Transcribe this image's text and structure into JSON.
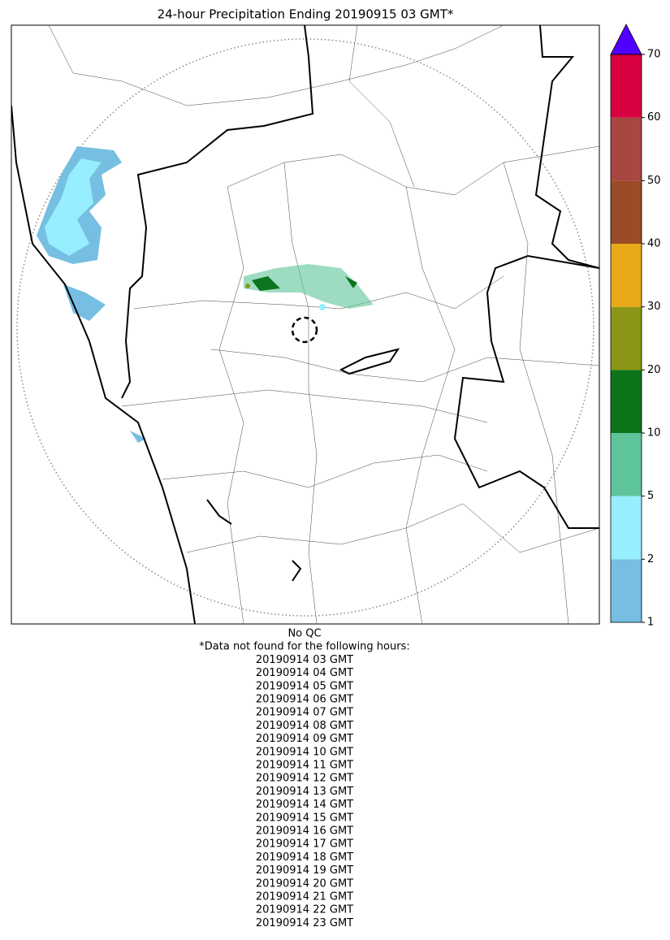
{
  "title": "24-hour Precipitation Ending 20190915 03 GMT*",
  "colorbar": {
    "ticks": [
      1,
      2,
      5,
      10,
      20,
      30,
      40,
      50,
      60,
      70
    ],
    "colors": [
      "#76bfe2",
      "#96eefe",
      "#5ec49a",
      "#0c741a",
      "#8b9616",
      "#e8aa18",
      "#9a4b28",
      "#a84640",
      "#d8003f"
    ],
    "extend_color": "#5000ff"
  },
  "notes": [
    "No QC",
    "*Data not found for the following hours:"
  ],
  "missing_hours": [
    "20190914 03 GMT",
    "20190914 04 GMT",
    "20190914 05 GMT",
    "20190914 06 GMT",
    "20190914 07 GMT",
    "20190914 08 GMT",
    "20190914 09 GMT",
    "20190914 10 GMT",
    "20190914 11 GMT",
    "20190914 12 GMT",
    "20190914 13 GMT",
    "20190914 14 GMT",
    "20190914 15 GMT",
    "20190914 16 GMT",
    "20190914 17 GMT",
    "20190914 18 GMT",
    "20190914 19 GMT",
    "20190914 20 GMT",
    "20190914 21 GMT",
    "20190914 22 GMT",
    "20190914 23 GMT"
  ]
}
